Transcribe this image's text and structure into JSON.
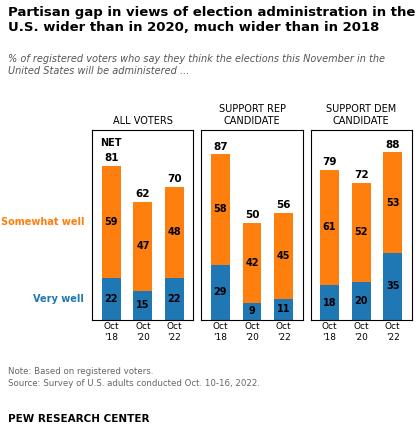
{
  "title": "Partisan gap in views of election administration in the\nU.S. wider than in 2020, much wider than in 2018",
  "subtitle": "% of registered voters who say they think the elections this November in the\nUnited States will be administered ...",
  "annotations": [
    "Note: Based on registered voters.\nSource: Survey of U.S. adults conducted Oct. 10-16, 2022.",
    "PEW RESEARCH CENTER"
  ],
  "chart_data": [
    {
      "type": "bar",
      "stacked": true,
      "title": "ALL VOTERS",
      "categories": [
        "Oct\n'18",
        "Oct\n'20",
        "Oct\n'22"
      ],
      "series": [
        {
          "name": "Very well",
          "values": [
            22,
            15,
            22
          ]
        },
        {
          "name": "Somewhat well",
          "values": [
            59,
            47,
            48
          ]
        }
      ],
      "totals": [
        81,
        62,
        70
      ],
      "annotations": [
        "NET"
      ],
      "ylim": [
        0,
        100
      ],
      "yticks": [],
      "tick_labels": "x",
      "data_labels": true
    },
    {
      "type": "bar",
      "stacked": true,
      "title": "SUPPORT REP\nCANDIDATE",
      "categories": [
        "Oct\n'18",
        "Oct\n'20",
        "Oct\n'22"
      ],
      "series": [
        {
          "name": "Very well",
          "values": [
            29,
            9,
            11
          ]
        },
        {
          "name": "Somewhat well",
          "values": [
            58,
            42,
            45
          ]
        }
      ],
      "totals": [
        87,
        50,
        56
      ],
      "ylim": [
        0,
        100
      ],
      "yticks": [],
      "tick_labels": "x",
      "data_labels": true
    },
    {
      "type": "bar",
      "stacked": true,
      "title": "SUPPORT DEM\nCANDIDATE",
      "categories": [
        "Oct\n'18",
        "Oct\n'20",
        "Oct\n'22"
      ],
      "series": [
        {
          "name": "Very well",
          "values": [
            18,
            20,
            35
          ]
        },
        {
          "name": "Somewhat well",
          "values": [
            61,
            52,
            53
          ]
        }
      ],
      "totals": [
        79,
        72,
        88
      ],
      "ylim": [
        0,
        100
      ],
      "yticks": [],
      "tick_labels": "x",
      "data_labels": true
    }
  ]
}
